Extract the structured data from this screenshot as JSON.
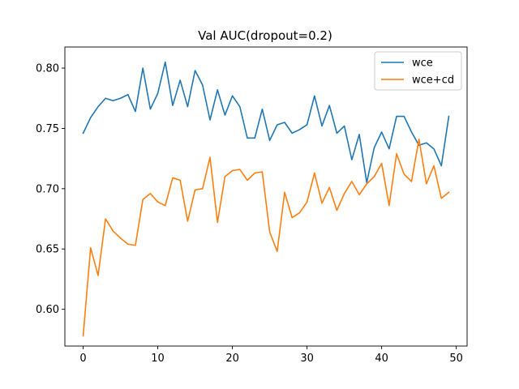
{
  "chart_data": {
    "type": "line",
    "title": "Val AUC(dropout=0.2)",
    "xlabel": "",
    "ylabel": "",
    "xlim": [
      -2.45,
      51.45
    ],
    "ylim": [
      0.5695,
      0.8175
    ],
    "xticks": [
      0,
      10,
      20,
      30,
      40,
      50
    ],
    "yticks": [
      0.6,
      0.65,
      0.7,
      0.75,
      0.8
    ],
    "ytick_labels": [
      "0.60",
      "0.65",
      "0.70",
      "0.75",
      "0.80"
    ],
    "legend_position": "top-right",
    "grid": false,
    "x": [
      0,
      1,
      2,
      3,
      4,
      5,
      6,
      7,
      8,
      9,
      10,
      11,
      12,
      13,
      14,
      15,
      16,
      17,
      18,
      19,
      20,
      21,
      22,
      23,
      24,
      25,
      26,
      27,
      28,
      29,
      30,
      31,
      32,
      33,
      34,
      35,
      36,
      37,
      38,
      39,
      40,
      41,
      42,
      43,
      44,
      45,
      46,
      47,
      48,
      49
    ],
    "series": [
      {
        "name": "wce",
        "color": "#1f77b4",
        "values": [
          0.746,
          0.759,
          0.768,
          0.775,
          0.773,
          0.775,
          0.778,
          0.764,
          0.8,
          0.766,
          0.779,
          0.805,
          0.769,
          0.79,
          0.768,
          0.798,
          0.786,
          0.757,
          0.782,
          0.761,
          0.777,
          0.768,
          0.742,
          0.742,
          0.766,
          0.74,
          0.753,
          0.755,
          0.746,
          0.749,
          0.753,
          0.777,
          0.752,
          0.769,
          0.746,
          0.752,
          0.724,
          0.745,
          0.705,
          0.734,
          0.747,
          0.733,
          0.76,
          0.76,
          0.747,
          0.736,
          0.738,
          0.733,
          0.719,
          0.76
        ]
      },
      {
        "name": "wce+cd",
        "color": "#ff7f0e",
        "values": [
          0.578,
          0.651,
          0.628,
          0.675,
          0.665,
          0.659,
          0.654,
          0.653,
          0.691,
          0.696,
          0.689,
          0.686,
          0.709,
          0.707,
          0.673,
          0.699,
          0.7,
          0.726,
          0.672,
          0.71,
          0.715,
          0.716,
          0.707,
          0.713,
          0.714,
          0.664,
          0.648,
          0.697,
          0.676,
          0.68,
          0.689,
          0.713,
          0.688,
          0.701,
          0.682,
          0.696,
          0.706,
          0.695,
          0.704,
          0.71,
          0.721,
          0.686,
          0.729,
          0.712,
          0.706,
          0.741,
          0.704,
          0.719,
          0.692,
          0.697
        ]
      }
    ]
  }
}
